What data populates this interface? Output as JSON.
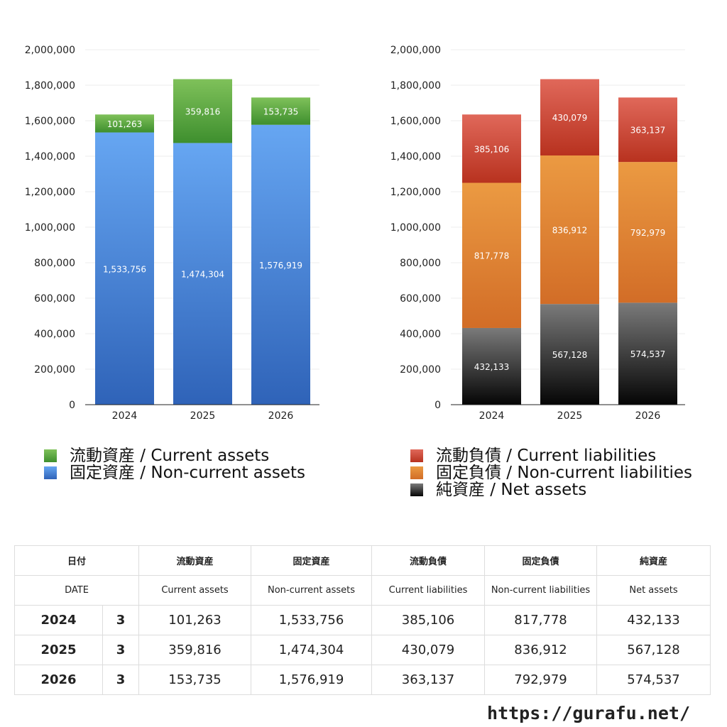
{
  "chart_data": [
    {
      "type": "bar",
      "stacked": true,
      "categories": [
        "2024",
        "2025",
        "2026"
      ],
      "series": [
        {
          "name": "固定資産 / Non-current assets",
          "color": "#4a86d8",
          "values": [
            1533756,
            1474304,
            1576919
          ]
        },
        {
          "name": "流動資産 / Current assets",
          "color": "#4a9c3a",
          "values": [
            101263,
            359816,
            153735
          ]
        }
      ],
      "ylim": [
        0,
        2000000
      ],
      "yticks": [
        "0",
        "200,000",
        "400,000",
        "600,000",
        "800,000",
        "1,000,000",
        "1,200,000",
        "1,400,000",
        "1,600,000",
        "1,800,000",
        "2,000,000"
      ],
      "grid": true,
      "legend_position": "bottom"
    },
    {
      "type": "bar",
      "stacked": true,
      "categories": [
        "2024",
        "2025",
        "2026"
      ],
      "series": [
        {
          "name": "純資産 / Net assets",
          "color": "#333333",
          "values": [
            432133,
            567128,
            574537
          ]
        },
        {
          "name": "固定負債 / Non-current liabilities",
          "color": "#e07d2e",
          "values": [
            817778,
            836912,
            792979
          ]
        },
        {
          "name": "流動負債 / Current liabilities",
          "color": "#cc4433",
          "values": [
            385106,
            430079,
            363137
          ]
        }
      ],
      "ylim": [
        0,
        2000000
      ],
      "yticks": [
        "0",
        "200,000",
        "400,000",
        "600,000",
        "800,000",
        "1,000,000",
        "1,200,000",
        "1,400,000",
        "1,600,000",
        "1,800,000",
        "2,000,000"
      ],
      "grid": true,
      "legend_position": "bottom"
    }
  ],
  "legend_left": [
    {
      "label": "流動資産 / Current assets",
      "color": "#4a9c3a"
    },
    {
      "label": "固定資産 / Non-current assets",
      "color": "#4a86d8"
    }
  ],
  "legend_right": [
    {
      "label": "流動負債 / Current liabilities",
      "color": "#cc4433"
    },
    {
      "label": "固定負債 / Non-current liabilities",
      "color": "#e07d2e"
    },
    {
      "label": "純資産 / Net assets",
      "color": "#222222"
    }
  ],
  "table": {
    "headers_jp": [
      "日付",
      "流動資産",
      "固定資産",
      "流動負債",
      "固定負債",
      "純資産"
    ],
    "headers_en": [
      "DATE",
      "Current assets",
      "Non-current assets",
      "Current liabilities",
      "Non-current liabilities",
      "Net assets"
    ],
    "rows": [
      {
        "year": "2024",
        "month": "3",
        "values": [
          "101,263",
          "1,533,756",
          "385,106",
          "817,778",
          "432,133"
        ]
      },
      {
        "year": "2025",
        "month": "3",
        "values": [
          "359,816",
          "1,474,304",
          "430,079",
          "836,912",
          "567,128"
        ]
      },
      {
        "year": "2026",
        "month": "3",
        "values": [
          "153,735",
          "1,576,919",
          "363,137",
          "792,979",
          "574,537"
        ]
      }
    ]
  },
  "footer_url": "https://gurafu.net/"
}
